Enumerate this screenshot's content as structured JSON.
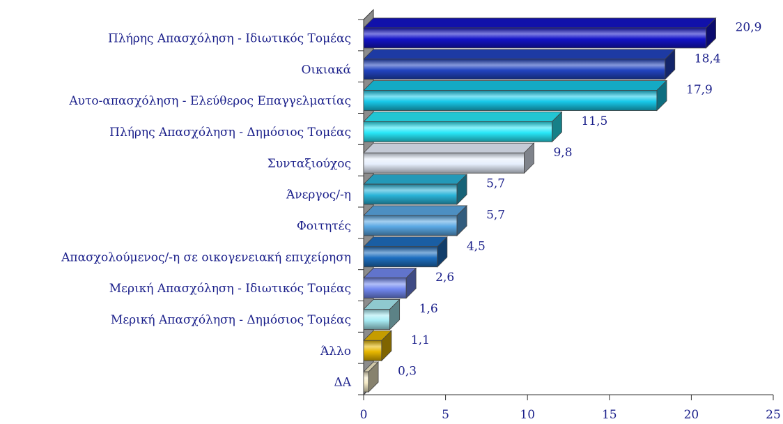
{
  "chart_data": {
    "type": "bar",
    "orientation": "horizontal",
    "style": "3d",
    "categories": [
      "Πλήρης Απασχόληση - Ιδιωτικός Τομέας",
      "Οικιακά",
      "Αυτο-απασχόληση - Ελεύθερος Επαγγελματίας",
      "Πλήρης Απασχόληση - Δημόσιος Τομέας",
      "Συνταξιούχος",
      "Άνεργος/-η",
      "Φοιτητές",
      "Απασχολούμενος/-η σε οικογενειακή επιχείρηση",
      "Μερική Απασχόληση - Ιδιωτικός Τομέας",
      "Μερική Απασχόληση - Δημόσιος Τομέας",
      "Άλλο",
      "ΔΑ"
    ],
    "values": [
      20.9,
      18.4,
      17.9,
      11.5,
      9.8,
      5.7,
      5.7,
      4.5,
      2.6,
      1.6,
      1.1,
      0.3
    ],
    "value_labels": [
      "20,9",
      "18,4",
      "17,9",
      "11,5",
      "9,8",
      "5,7",
      "5,7",
      "4,5",
      "2,6",
      "1,6",
      "1,1",
      "0,3"
    ],
    "bar_colors": [
      "#1414c8",
      "#2244c0",
      "#18c8e8",
      "#28e8f8",
      "#e6eefc",
      "#2ab4d8",
      "#5aa8e4",
      "#1e6fc0",
      "#7288f0",
      "#a8ecf4",
      "#e8b800",
      "#f6ecc8"
    ],
    "xlim": [
      0,
      25
    ],
    "xticks": [
      0,
      5,
      10,
      15,
      20,
      25
    ],
    "xtick_labels": [
      "0",
      "5",
      "10",
      "15",
      "20",
      "25"
    ],
    "grid": false,
    "legend": "none",
    "label_color": "#1a1f8a",
    "axis_wall_color": "#8c8c8c"
  }
}
